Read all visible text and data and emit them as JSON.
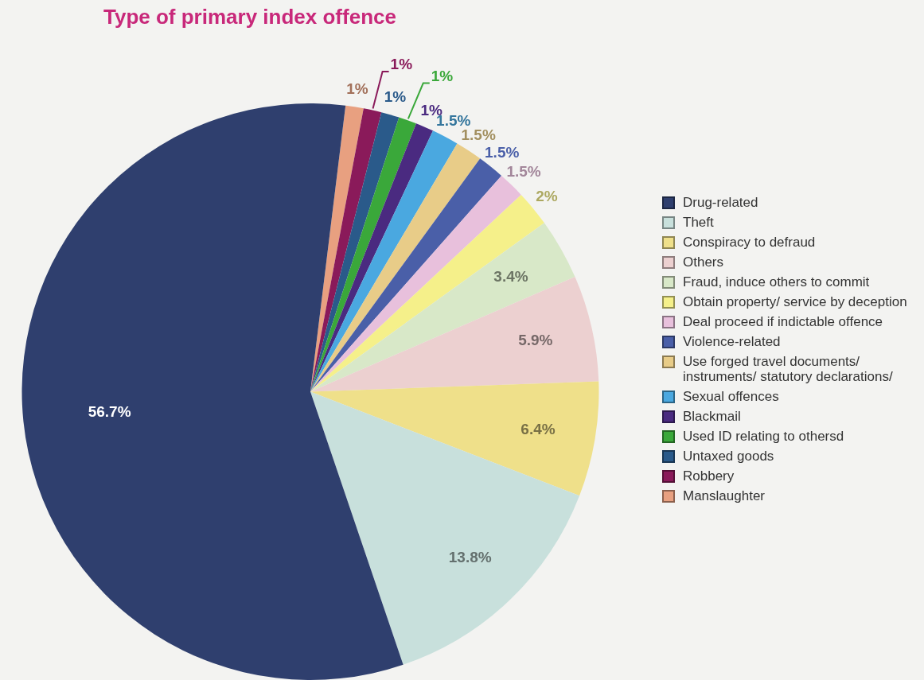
{
  "chart_data": {
    "type": "pie",
    "title": "Type of primary index offence",
    "categories": [
      "Drug-related",
      "Theft",
      "Conspiracy to defraud",
      "Others",
      "Fraud, induce others to commit",
      "Obtain property/ service by deception",
      "Deal proceed if indictable offence",
      "Violence-related",
      "Use forged travel documents/ instruments/ statutory declarations/",
      "Sexual offences",
      "Blackmail",
      "Used ID relating to othersd",
      "Untaxed goods",
      "Robbery",
      "Manslaughter"
    ],
    "values": [
      56.7,
      13.8,
      6.4,
      5.9,
      3.4,
      2,
      1.5,
      1.5,
      1.5,
      1.5,
      1,
      1,
      1,
      1,
      1
    ],
    "colors": [
      "#2f3f6e",
      "#c8e0dc",
      "#efe08a",
      "#ecd0d0",
      "#d8e8c8",
      "#f5f08a",
      "#e8c0dc",
      "#4a5fa8",
      "#e8cc88",
      "#4aa8e0",
      "#4a2a80",
      "#3aa83a",
      "#2a5a8a",
      "#8a1a5a",
      "#e8a080"
    ],
    "value_labels": [
      "56.7%",
      "13.8%",
      "6.4%",
      "5.9%",
      "3.4%",
      "2%",
      "1.5%",
      "1.5%",
      "1.5%",
      "1.5%",
      "1%",
      "1%",
      "1%",
      "1%",
      "1%"
    ],
    "legend": "right"
  }
}
